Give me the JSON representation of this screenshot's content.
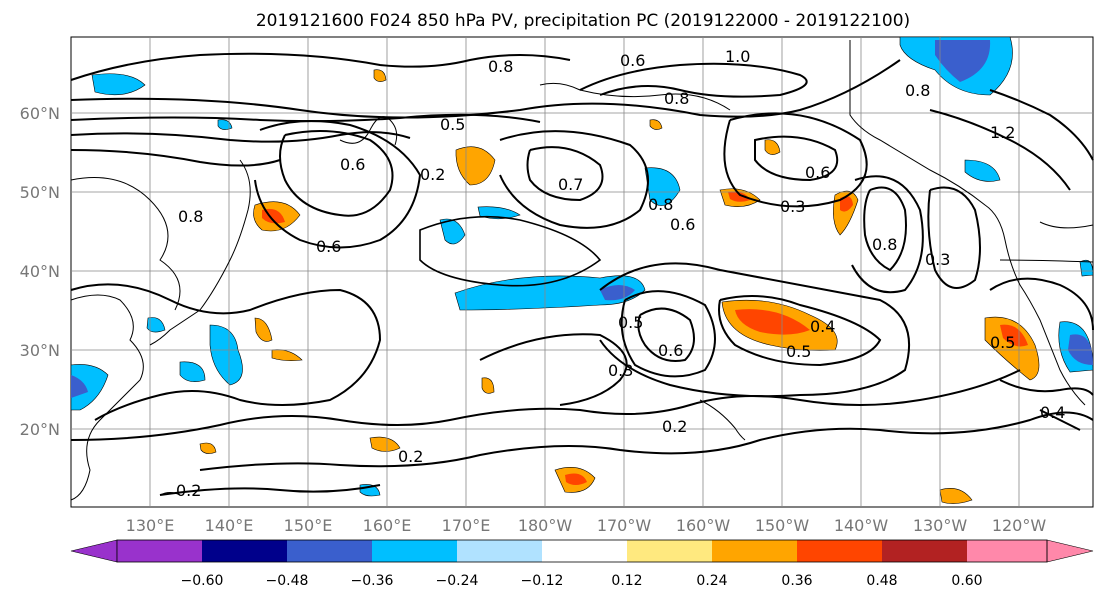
{
  "title": "2019121600 F024 850 hPa PV, precipitation PC (2019122000 - 2019122100)",
  "map": {
    "lon_labels": [
      "130°E",
      "140°E",
      "150°E",
      "160°E",
      "170°E",
      "180°W",
      "170°W",
      "160°W",
      "150°W",
      "140°W",
      "130°W",
      "120°W"
    ],
    "lat_labels": [
      "60°N",
      "50°N",
      "40°N",
      "30°N",
      "20°N"
    ],
    "contour_labels": [
      "0.6",
      "0.8",
      "1.0",
      "0.8",
      "0.8",
      "0.6",
      "0.5",
      "0.2",
      "0.7",
      "0.6",
      "0.3",
      "0.6",
      "0.8",
      "0.6",
      "0.8",
      "0.3",
      "0.5",
      "0.4",
      "0.5",
      "0.3",
      "0.2",
      "0.2",
      "0.2",
      "0.5",
      "0.4",
      "0.8",
      "1.2",
      "0.6"
    ]
  },
  "colorbar": {
    "ticks": [
      "−0.60",
      "−0.48",
      "−0.36",
      "−0.24",
      "−0.12",
      "0.12",
      "0.24",
      "0.36",
      "0.48",
      "0.60"
    ],
    "colors": [
      "#9932cc",
      "#00008b",
      "#3a5fcd",
      "#00bfff",
      "#b0e2ff",
      "#ffffff",
      "#ffe97f",
      "#ffa500",
      "#ff4500",
      "#b22222",
      "#ff88aa",
      "#ff88aa"
    ]
  }
}
